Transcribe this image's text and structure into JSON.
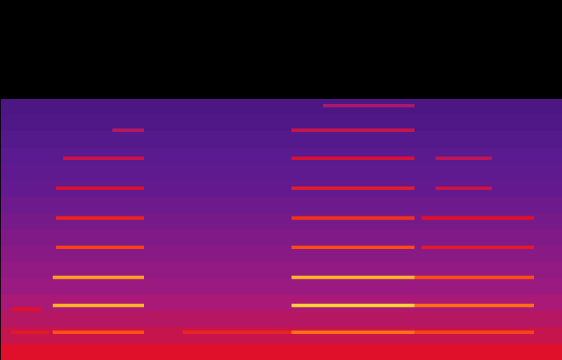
{
  "chart_data": {
    "type": "spectrogram",
    "xlim": [
      0,
      4
    ],
    "ylim": [
      0,
      11.025
    ],
    "xticks": [],
    "yticks": [],
    "tick_labels": false,
    "grid": false,
    "zlim": [
      -120,
      0
    ],
    "bands": [
      0,
      0.5,
      1.0,
      1.5,
      2.0,
      2.5,
      3.0,
      3.5,
      4.0,
      4.5,
      5.0,
      5.5,
      6.0,
      6.5,
      7.0,
      7.5,
      8.0
    ],
    "noise_levels": [
      -60,
      -66,
      -70,
      -73,
      -76,
      -78,
      -80,
      -82,
      -84,
      -86,
      -88,
      -89,
      -90,
      -92,
      -93,
      -94
    ],
    "harmonics": [
      {
        "t_start": 0.08,
        "t_end": 0.35,
        "frequency": 0.86,
        "level": -58
      },
      {
        "t_start": 0.08,
        "t_end": 0.3,
        "frequency": 1.57,
        "level": -60
      },
      {
        "t_start": 0.375,
        "t_end": 1.025,
        "frequency": 0.86,
        "level": -45
      },
      {
        "t_start": 0.375,
        "t_end": 1.025,
        "frequency": 1.68,
        "level": -28
      },
      {
        "t_start": 0.375,
        "t_end": 1.025,
        "frequency": 2.54,
        "level": -32
      },
      {
        "t_start": 0.4,
        "t_end": 1.025,
        "frequency": 3.46,
        "level": -48
      },
      {
        "t_start": 0.4,
        "t_end": 1.025,
        "frequency": 4.36,
        "level": -55
      },
      {
        "t_start": 0.4,
        "t_end": 1.025,
        "frequency": 5.27,
        "level": -60
      },
      {
        "t_start": 0.45,
        "t_end": 1.025,
        "frequency": 6.19,
        "level": -65
      },
      {
        "t_start": 0.8,
        "t_end": 1.025,
        "frequency": 7.05,
        "level": -70
      },
      {
        "t_start": 1.3,
        "t_end": 2.075,
        "frequency": 0.86,
        "level": -55
      },
      {
        "t_start": 2.075,
        "t_end": 2.95,
        "frequency": 0.86,
        "level": -40
      },
      {
        "t_start": 2.075,
        "t_end": 2.95,
        "frequency": 1.68,
        "level": -20
      },
      {
        "t_start": 2.075,
        "t_end": 2.95,
        "frequency": 2.54,
        "level": -28
      },
      {
        "t_start": 2.075,
        "t_end": 2.95,
        "frequency": 3.46,
        "level": -46
      },
      {
        "t_start": 2.075,
        "t_end": 2.95,
        "frequency": 4.36,
        "level": -52
      },
      {
        "t_start": 2.075,
        "t_end": 2.95,
        "frequency": 5.27,
        "level": -57
      },
      {
        "t_start": 2.075,
        "t_end": 2.95,
        "frequency": 6.19,
        "level": -62
      },
      {
        "t_start": 2.075,
        "t_end": 2.95,
        "frequency": 7.05,
        "level": -66
      },
      {
        "t_start": 2.3,
        "t_end": 2.95,
        "frequency": 7.8,
        "level": -72
      },
      {
        "t_start": 2.95,
        "t_end": 3.8,
        "frequency": 0.86,
        "level": -48
      },
      {
        "t_start": 2.95,
        "t_end": 3.8,
        "frequency": 1.68,
        "level": -40
      },
      {
        "t_start": 2.95,
        "t_end": 3.8,
        "frequency": 2.54,
        "level": -45
      },
      {
        "t_start": 3.0,
        "t_end": 3.8,
        "frequency": 3.46,
        "level": -58
      },
      {
        "t_start": 3.0,
        "t_end": 3.8,
        "frequency": 4.36,
        "level": -60
      },
      {
        "t_start": 3.1,
        "t_end": 3.5,
        "frequency": 5.27,
        "level": -64
      },
      {
        "t_start": 3.1,
        "t_end": 3.5,
        "frequency": 6.19,
        "level": -68
      }
    ]
  }
}
